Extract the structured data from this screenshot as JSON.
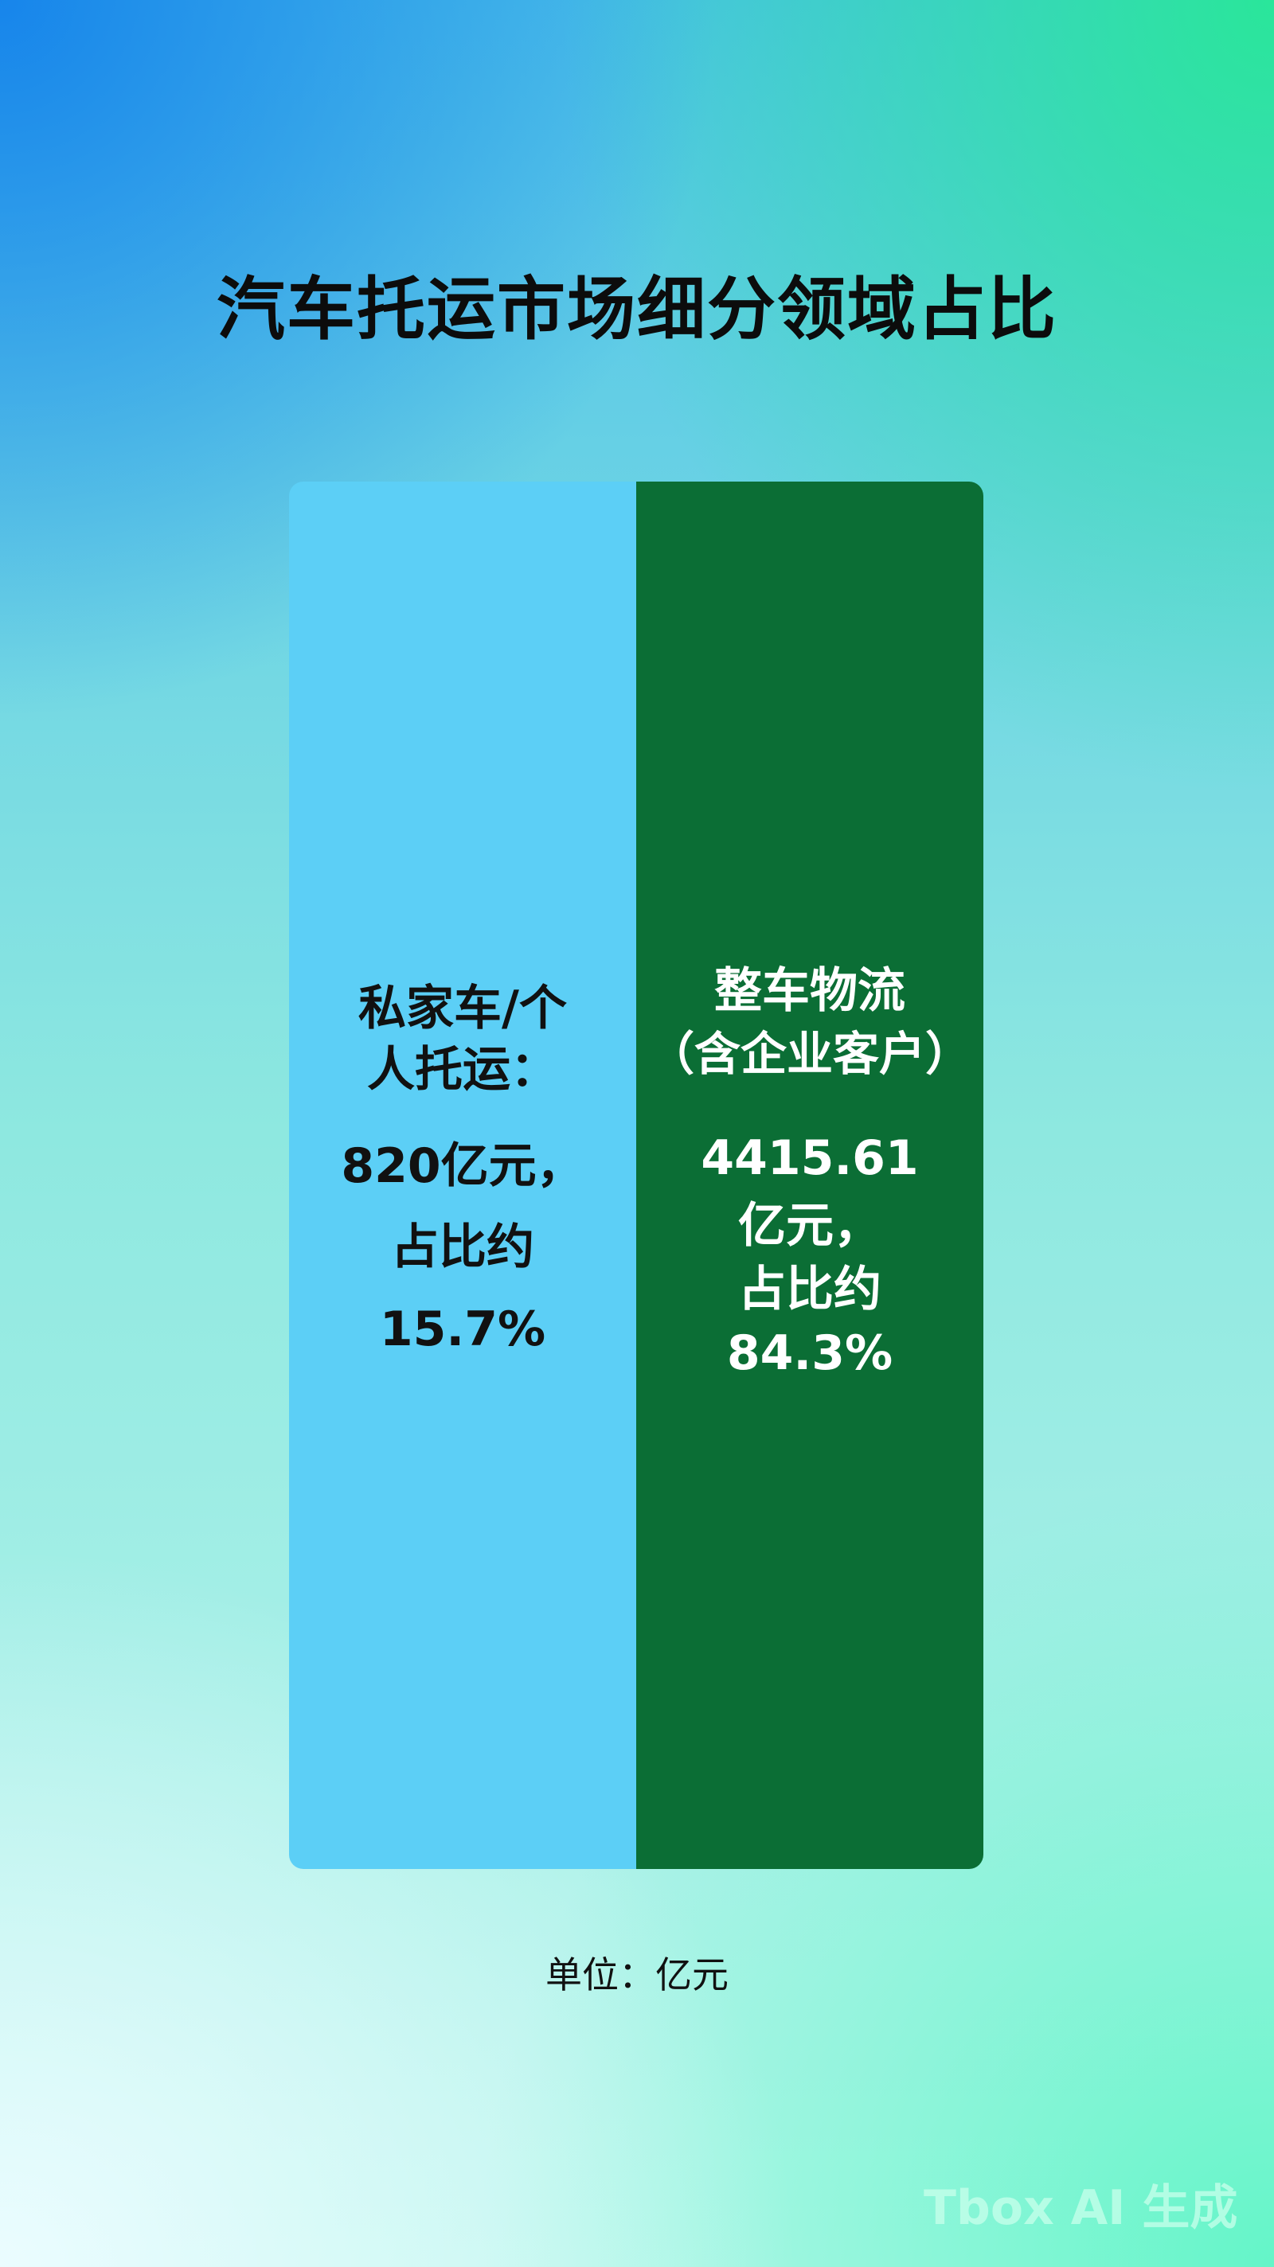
{
  "title": "汽车托运市场细分领域占比",
  "chart_data": {
    "type": "bar",
    "title": "汽车托运市场细分领域占比",
    "unit_label": "单位：亿元",
    "categories": [
      "私家车/个人托运",
      "整车物流（含企业客户）"
    ],
    "values": [
      820,
      4415.61
    ],
    "shares_percent": [
      15.7,
      84.3
    ],
    "colors": [
      "#5ccff6",
      "#0b6e35"
    ],
    "labels": [
      {
        "lines": [
          "私家车/个",
          "人托运：",
          "820亿元，",
          "占比约",
          "15.7%"
        ],
        "color": "#111111"
      },
      {
        "lines": [
          "整车物流",
          "（含企业客户）",
          "4415.61",
          "亿元，",
          "占比约",
          "84.3%"
        ],
        "color": "#ffffff"
      }
    ]
  },
  "watermark": "Tbox AI 生成"
}
